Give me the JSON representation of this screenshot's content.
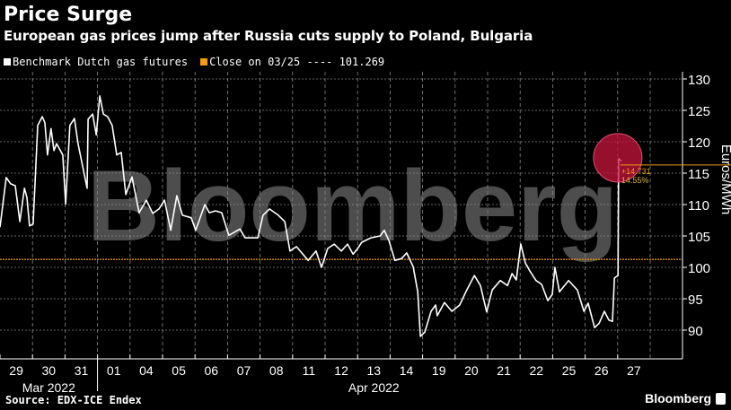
{
  "header": {
    "title": "Price Surge",
    "subtitle": "European gas prices jump after Russia cuts supply to Poland, Bulgaria"
  },
  "footer": {
    "source": "Source: EDX-ICE Endex",
    "brand": "Bloomberg"
  },
  "watermark": "Bloomberg",
  "chart_data": {
    "type": "line",
    "title": "Price Surge",
    "ylabel": "Euros/MWh",
    "ylim": [
      87,
      131
    ],
    "yticks": [
      90,
      95,
      100,
      105,
      110,
      115,
      120,
      125,
      130
    ],
    "xlim": [
      0,
      20
    ],
    "categories": [
      "29",
      "30",
      "31",
      "01",
      "04",
      "05",
      "06",
      "07",
      "08",
      "11",
      "12",
      "13",
      "14",
      "19",
      "20",
      "21",
      "22",
      "25",
      "26",
      "27"
    ],
    "month_labels": [
      {
        "label": "Mar 2022",
        "from": 0,
        "to": 3
      },
      {
        "label": "Apr 2022",
        "from": 3,
        "to": 20
      }
    ],
    "grid": true,
    "legend": {
      "placement": "top-left",
      "series_label": "Benchmark Dutch gas futures",
      "reference_label": "Close on 03/25 ---- 101.269"
    },
    "colors": {
      "series": "#ffffff",
      "reference": "#f39c12",
      "highlight": "#c8143c",
      "annotation": "#f39c12"
    },
    "reference_line": {
      "value": 101.269
    },
    "annotation": {
      "change": "+14.731",
      "pct": "14.55%",
      "x": 19.03,
      "y": 117.3
    },
    "series": [
      {
        "name": "Benchmark Dutch gas futures",
        "x": [
          0,
          0.08,
          0.19,
          0.33,
          0.47,
          0.61,
          0.75,
          0.83,
          0.91,
          1.02,
          1.16,
          1.3,
          1.38,
          1.46,
          1.57,
          1.66,
          1.74,
          1.93,
          2.02,
          2.15,
          2.29,
          2.4,
          2.68,
          2.71,
          2.85,
          2.96,
          3.07,
          3.18,
          3.31,
          3.45,
          3.59,
          3.73,
          3.87,
          4.06,
          4.28,
          4.5,
          4.7,
          4.89,
          5.06,
          5.25,
          5.44,
          5.61,
          5.88,
          6.02,
          6.3,
          6.44,
          6.63,
          6.82,
          7.04,
          7.38,
          7.54,
          7.93,
          8.09,
          8.29,
          8.56,
          8.76,
          8.92,
          9.12,
          9.48,
          9.72,
          9.89,
          10.08,
          10.28,
          10.5,
          10.69,
          10.86,
          10.99,
          11.13,
          11.41,
          11.69,
          11.82,
          11.96,
          12.15,
          12.35,
          12.51,
          12.71,
          12.85,
          12.93,
          13.07,
          13.26,
          13.4,
          13.45,
          13.67,
          13.9,
          14.14,
          14.36,
          14.59,
          14.78,
          14.97,
          15.14,
          15.39,
          15.61,
          15.75,
          15.88,
          16.02,
          16.16,
          16.3,
          16.49,
          16.66,
          16.85,
          16.99,
          17.07,
          17.21,
          17.49,
          17.76,
          17.96,
          18.09,
          18.29,
          18.43,
          18.59,
          18.73,
          18.84,
          18.9,
          19.01,
          19.03,
          19.12
        ],
        "values": [
          106.4,
          109.7,
          114.3,
          113.3,
          113,
          107.3,
          112.6,
          111.1,
          106.6,
          106.9,
          122.6,
          124,
          123,
          117.9,
          122.1,
          118.6,
          119.7,
          117.9,
          110.1,
          122.6,
          123.7,
          119.7,
          112.6,
          123.6,
          124.4,
          121.1,
          127.3,
          124.4,
          124,
          122.6,
          117.9,
          118.3,
          111.6,
          114.4,
          108.7,
          110.7,
          108.6,
          109.3,
          110.7,
          105.9,
          111.4,
          108.3,
          107.9,
          105.9,
          110,
          108.7,
          109,
          108.7,
          105.1,
          106.1,
          104.7,
          104.7,
          108.3,
          109.3,
          108.3,
          107.3,
          102.6,
          103.3,
          101.1,
          102.6,
          100,
          103,
          103.7,
          102.6,
          103.7,
          102.1,
          102.9,
          104,
          104.7,
          105,
          105.9,
          104.3,
          101.1,
          101.4,
          102.3,
          100.1,
          96.1,
          89,
          89.7,
          93,
          94,
          92.3,
          94.4,
          93,
          94,
          96.4,
          98.7,
          97.1,
          92.9,
          96.4,
          97.9,
          97.1,
          99,
          98,
          103.7,
          100.7,
          99.4,
          97.9,
          97.3,
          94.7,
          95.7,
          100,
          96.1,
          97.9,
          96.4,
          93,
          94.3,
          90.4,
          91.1,
          93,
          91.6,
          91.4,
          98.3,
          98.7,
          117.3,
          116.9
        ]
      }
    ]
  }
}
